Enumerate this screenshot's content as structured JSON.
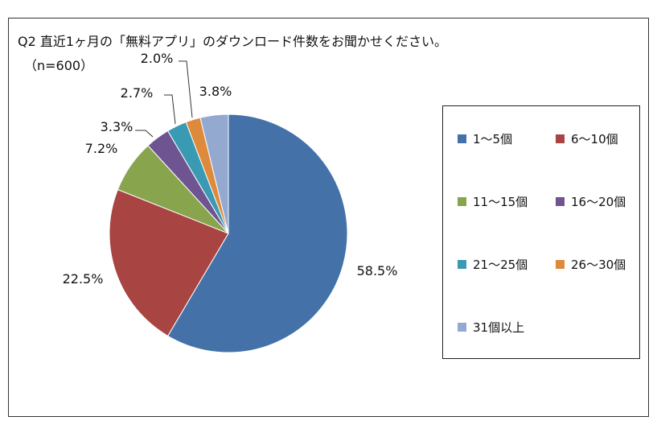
{
  "chart_data": {
    "type": "pie",
    "title": "Q2 直近1ヶ月の「無料アプリ」のダウンロード件数をお聞かせください。",
    "subtitle": "（n=600）",
    "legend_position": "right",
    "slices": [
      {
        "name": "1〜5個",
        "value": 58.5,
        "label": "58.5%",
        "color": "#4472A8"
      },
      {
        "name": "6〜10個",
        "value": 22.5,
        "label": "22.5%",
        "color": "#A84442"
      },
      {
        "name": "11〜15個",
        "value": 7.2,
        "label": "7.2%",
        "color": "#88A44C"
      },
      {
        "name": "16〜20個",
        "value": 3.3,
        "label": "3.3%",
        "color": "#6E5591"
      },
      {
        "name": "21〜25個",
        "value": 2.7,
        "label": "2.7%",
        "color": "#3A9AB3"
      },
      {
        "name": "26〜30個",
        "value": 2.0,
        "label": "2.0%",
        "color": "#DE8A3C"
      },
      {
        "name": "31個以上",
        "value": 3.8,
        "label": "3.8%",
        "color": "#93A9D0"
      }
    ]
  }
}
